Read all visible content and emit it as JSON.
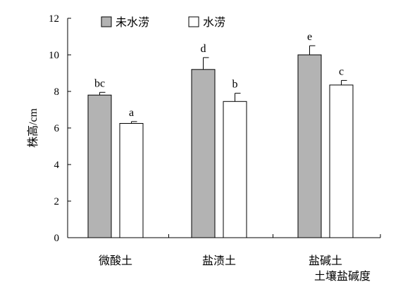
{
  "chart_data": {
    "type": "bar",
    "ylabel": "株高/cm",
    "xlabel": "土壤盐碱度",
    "ylim": [
      0,
      12
    ],
    "yticks": [
      0,
      2,
      4,
      6,
      8,
      10,
      12
    ],
    "categories": [
      "微酸土",
      "盐渍土",
      "盐碱土"
    ],
    "series": [
      {
        "name": "未水涝",
        "color": "#b3b3b3",
        "values": [
          7.8,
          9.2,
          10.0
        ],
        "errors": [
          0.15,
          0.65,
          0.5
        ],
        "sig_labels": [
          "bc",
          "d",
          "e"
        ]
      },
      {
        "name": "水涝",
        "color": "#ffffff",
        "values": [
          6.25,
          7.45,
          8.35
        ],
        "errors": [
          0.1,
          0.45,
          0.25
        ],
        "sig_labels": [
          "a",
          "b",
          "c"
        ]
      }
    ],
    "legend_position": "top-left",
    "grid": false
  }
}
